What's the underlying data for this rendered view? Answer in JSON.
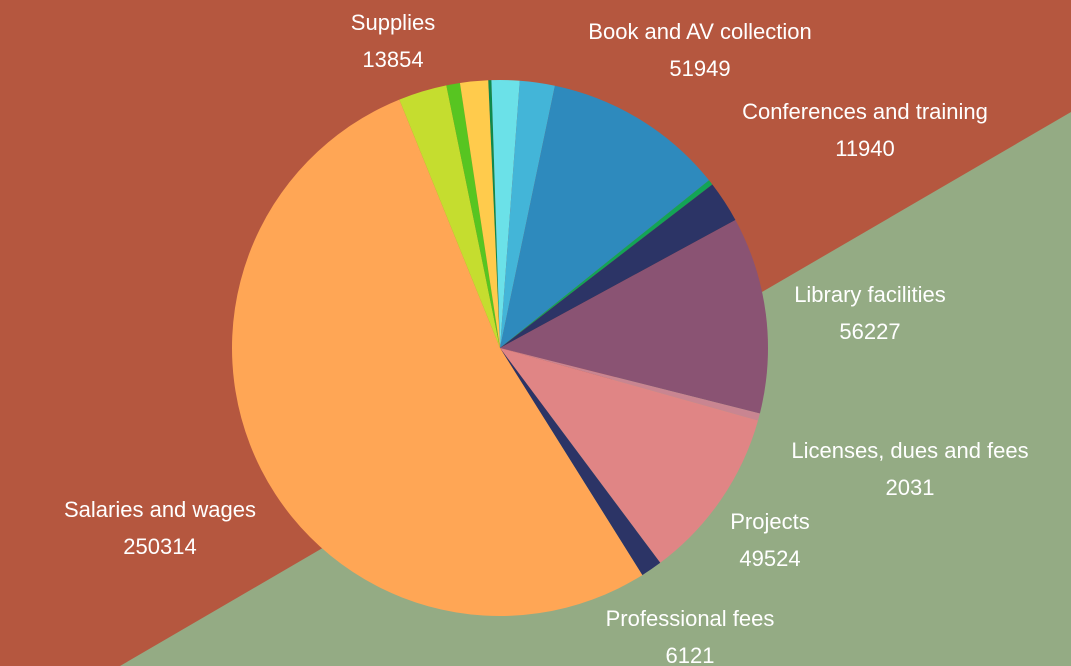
{
  "chart_data": {
    "type": "pie",
    "categories": [
      null,
      null,
      null,
      "Book and AV collection",
      null,
      "Conferences and training",
      "Library facilities",
      "Licenses, dues and fees",
      "Projects",
      "Professional fees",
      "Salaries and wages",
      "Supplies",
      null,
      null
    ],
    "values": [
      900,
      8000,
      10000,
      51949,
      1500,
      11940,
      56227,
      2031,
      49524,
      6121,
      250314,
      13854,
      3900,
      8000
    ],
    "colors": [
      "#0f8a4c",
      "#6be1e8",
      "#43b5d8",
      "#2e8abd",
      "#12a556",
      "#2c3466",
      "#8a5373",
      "#c98591",
      "#e08585",
      "#2c3466",
      "#ffa655",
      "#c5dd2f",
      "#57c521",
      "#ffcb4c"
    ]
  }
}
